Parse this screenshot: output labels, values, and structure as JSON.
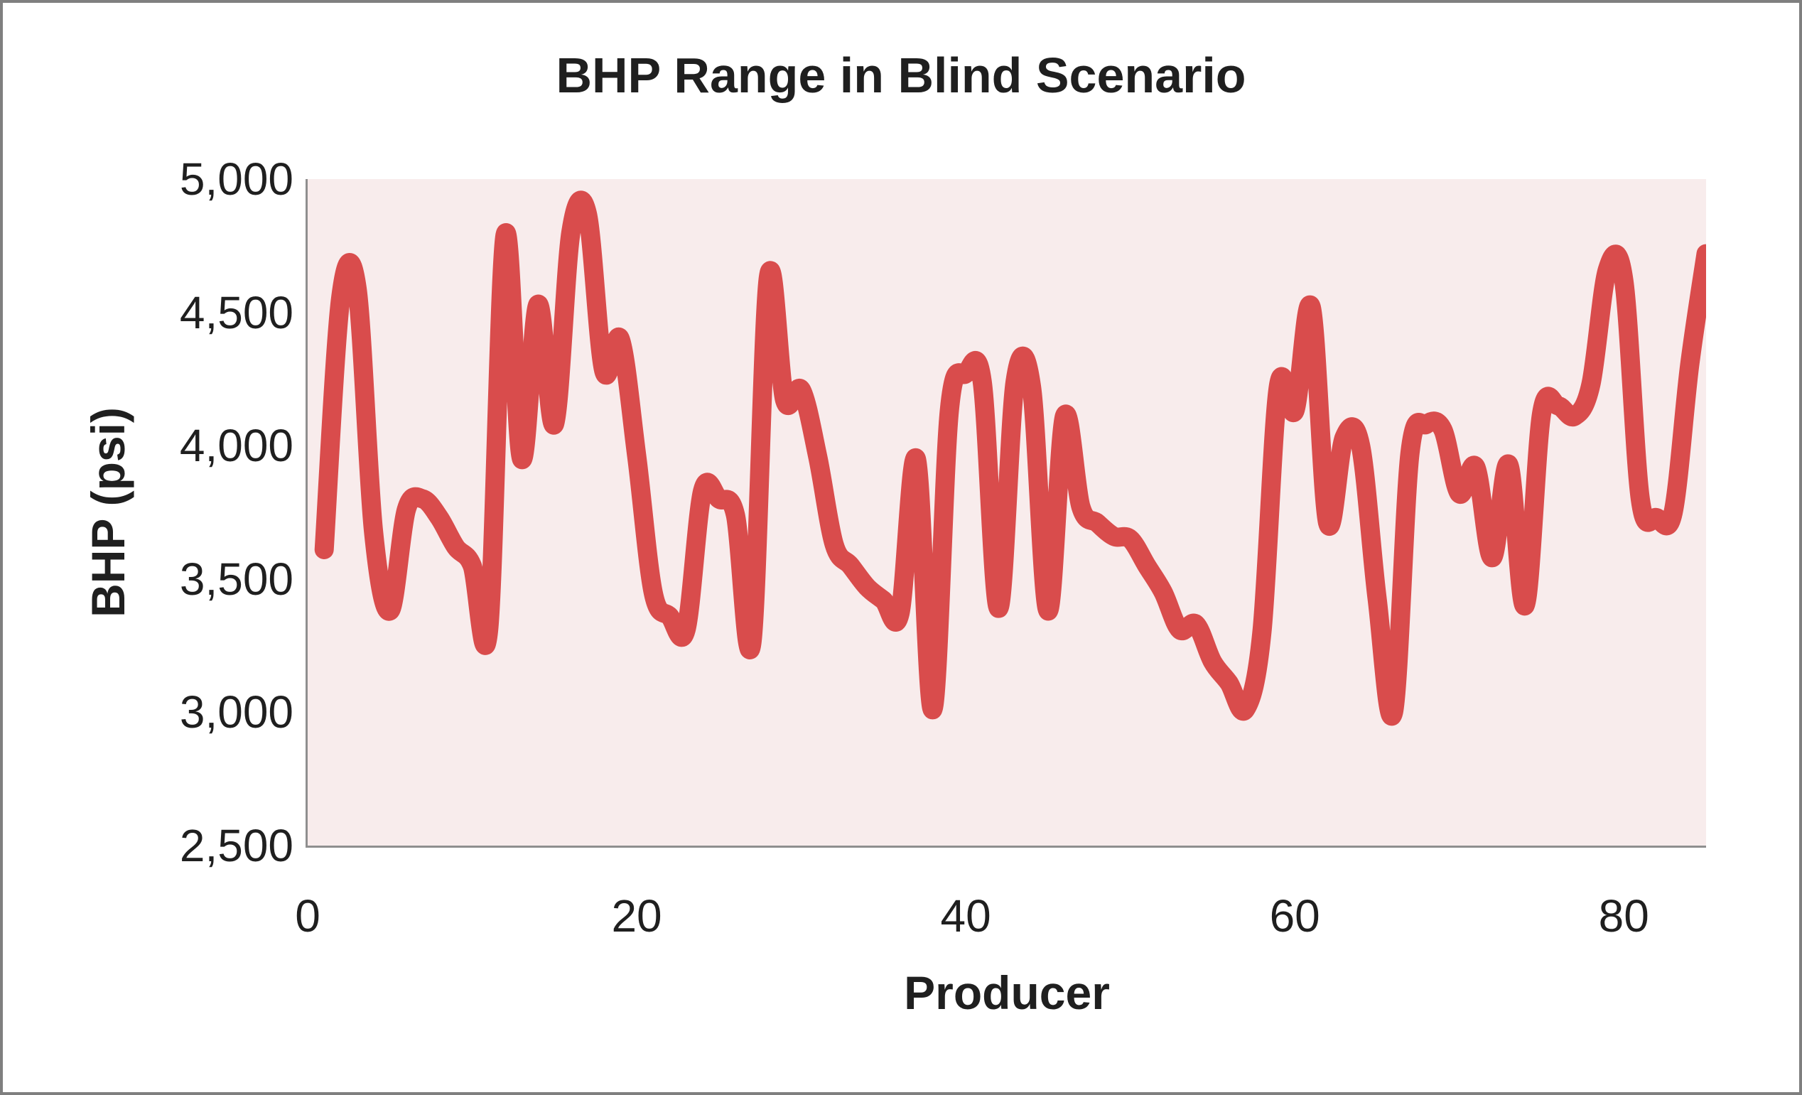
{
  "title": "BHP Range in Blind Scenario",
  "chart_data": {
    "type": "line",
    "title": "BHP Range in Blind Scenario",
    "xlabel": "Producer",
    "ylabel": "BHP (psi)",
    "xlim": [
      0,
      85
    ],
    "ylim": [
      2500,
      5000
    ],
    "grid": false,
    "legend_position": "none",
    "xticks": [
      0,
      20,
      40,
      60,
      80
    ],
    "xtick_labels": [
      "0",
      "20",
      "40",
      "60",
      "80"
    ],
    "yticks": [
      5000,
      4500,
      4000,
      3500,
      3000,
      2500
    ],
    "ytick_labels": [
      "5,000",
      "4,500",
      "4,000",
      "3,500",
      "3,000",
      "2,500"
    ],
    "series": [
      {
        "name": "BHP",
        "x": [
          1,
          2,
          3,
          4,
          5,
          6,
          7,
          8,
          9,
          10,
          11,
          12,
          13,
          14,
          15,
          16,
          17,
          18,
          19,
          20,
          21,
          22,
          23,
          24,
          25,
          26,
          27,
          28,
          29,
          30,
          31,
          32,
          33,
          34,
          35,
          36,
          37,
          38,
          39,
          40,
          41,
          42,
          43,
          44,
          45,
          46,
          47,
          48,
          49,
          50,
          51,
          52,
          53,
          54,
          55,
          56,
          57,
          58,
          59,
          60,
          61,
          62,
          63,
          64,
          65,
          66,
          67,
          68,
          69,
          70,
          71,
          72,
          73,
          74,
          75,
          76,
          77,
          78,
          79,
          80,
          81,
          82,
          83,
          84,
          85
        ],
        "values": [
          3610,
          4550,
          4590,
          3680,
          3380,
          3760,
          3800,
          3730,
          3620,
          3550,
          3310,
          4790,
          3950,
          4530,
          4080,
          4800,
          4870,
          4280,
          4400,
          3960,
          3450,
          3360,
          3310,
          3830,
          3800,
          3740,
          3260,
          4630,
          4170,
          4210,
          3960,
          3630,
          3550,
          3470,
          3420,
          3370,
          3950,
          3010,
          4130,
          4270,
          4240,
          3390,
          4240,
          4220,
          3380,
          4110,
          3770,
          3710,
          3660,
          3650,
          3550,
          3450,
          3310,
          3330,
          3190,
          3110,
          3010,
          3300,
          4220,
          4130,
          4520,
          3710,
          4030,
          4000,
          3430,
          3000,
          3970,
          4080,
          4060,
          3820,
          3920,
          3580,
          3930,
          3400,
          4120,
          4150,
          4110,
          4230,
          4660,
          4620,
          3800,
          3730,
          3750,
          4300,
          4720
        ]
      }
    ],
    "colors": {
      "line": "#d94c4c",
      "plot_bg": "#f8ecec",
      "axis": "#8f8f8f",
      "frame_border": "#7f7f7f",
      "text": "#1f1f1f",
      "background": "#ffffff"
    }
  }
}
